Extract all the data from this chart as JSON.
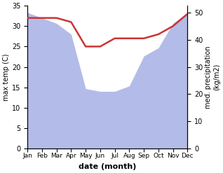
{
  "months": [
    "Jan",
    "Feb",
    "Mar",
    "Apr",
    "May",
    "Jun",
    "Jul",
    "Aug",
    "Sep",
    "Oct",
    "Nov",
    "Dec"
  ],
  "temperature": [
    32,
    32,
    32,
    31,
    25,
    25,
    27,
    27,
    27,
    28,
    30,
    33
  ],
  "precipitation": [
    50,
    48,
    46,
    42,
    22,
    21,
    21,
    23,
    34,
    37,
    46,
    50
  ],
  "temp_color": "#cc3333",
  "precip_color": "#b3bce8",
  "temp_ylim": [
    0,
    35
  ],
  "precip_ylim": [
    0,
    52.5
  ],
  "temp_yticks": [
    0,
    5,
    10,
    15,
    20,
    25,
    30,
    35
  ],
  "precip_yticks": [
    0,
    10,
    20,
    30,
    40,
    50
  ],
  "xlabel": "date (month)",
  "ylabel_left": "max temp (C)",
  "ylabel_right": "med. precipitation\n(kg/m2)"
}
